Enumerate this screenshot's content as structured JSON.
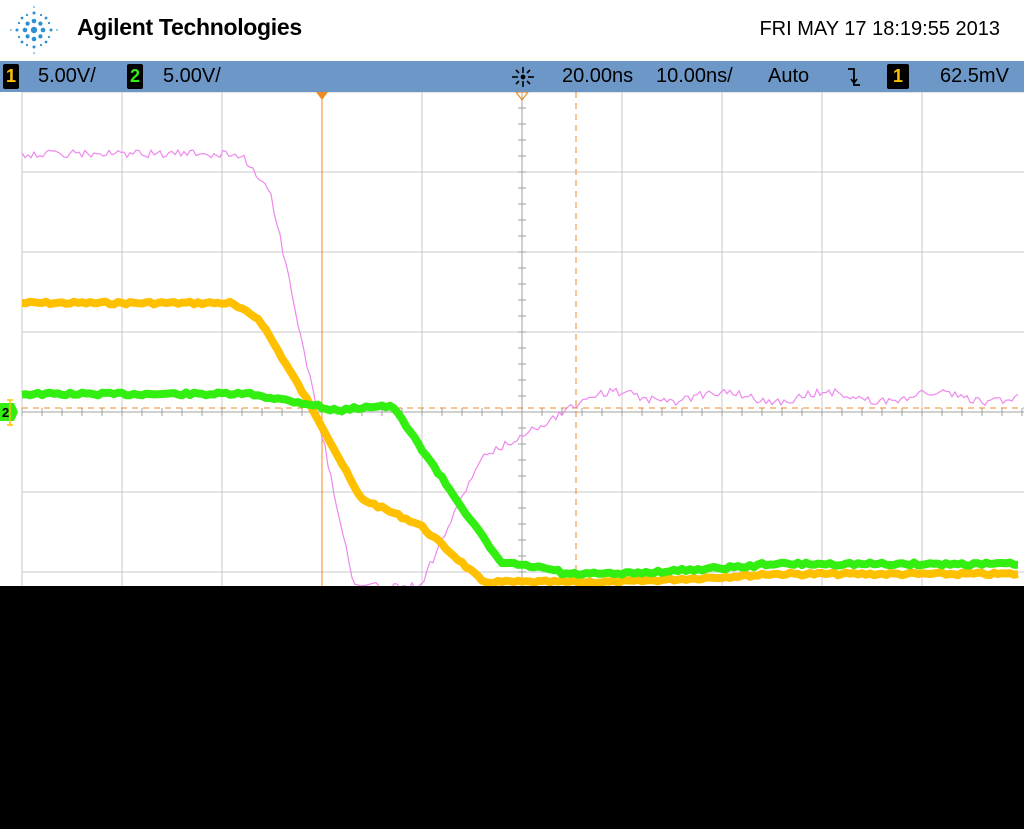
{
  "header": {
    "brand": "Agilent Technologies",
    "timestamp": "FRI MAY 17 18:19:55 2013",
    "logo_icon": "agilent-spark-logo-icon"
  },
  "statusbar": {
    "ch1_number": "1",
    "ch1_scale": "5.00V/",
    "ch2_number": "2",
    "ch2_scale": "5.00V/",
    "trigger_icon": "trigger-position-icon",
    "time_delay": "20.00ns",
    "time_scale": "10.00ns/",
    "trigger_mode": "Auto",
    "slope_icon": "falling-edge-icon",
    "trigger_source": "1",
    "trigger_level": "62.5mV"
  },
  "display": {
    "ground_marker_ch2": "2",
    "colors": {
      "ch1": "#ffc000",
      "ch2": "#33ee11",
      "math": "#ee88ee",
      "grid": "#c8c8c8",
      "cursor": "#f08a24",
      "status_bg": "#6d97c6"
    }
  }
}
